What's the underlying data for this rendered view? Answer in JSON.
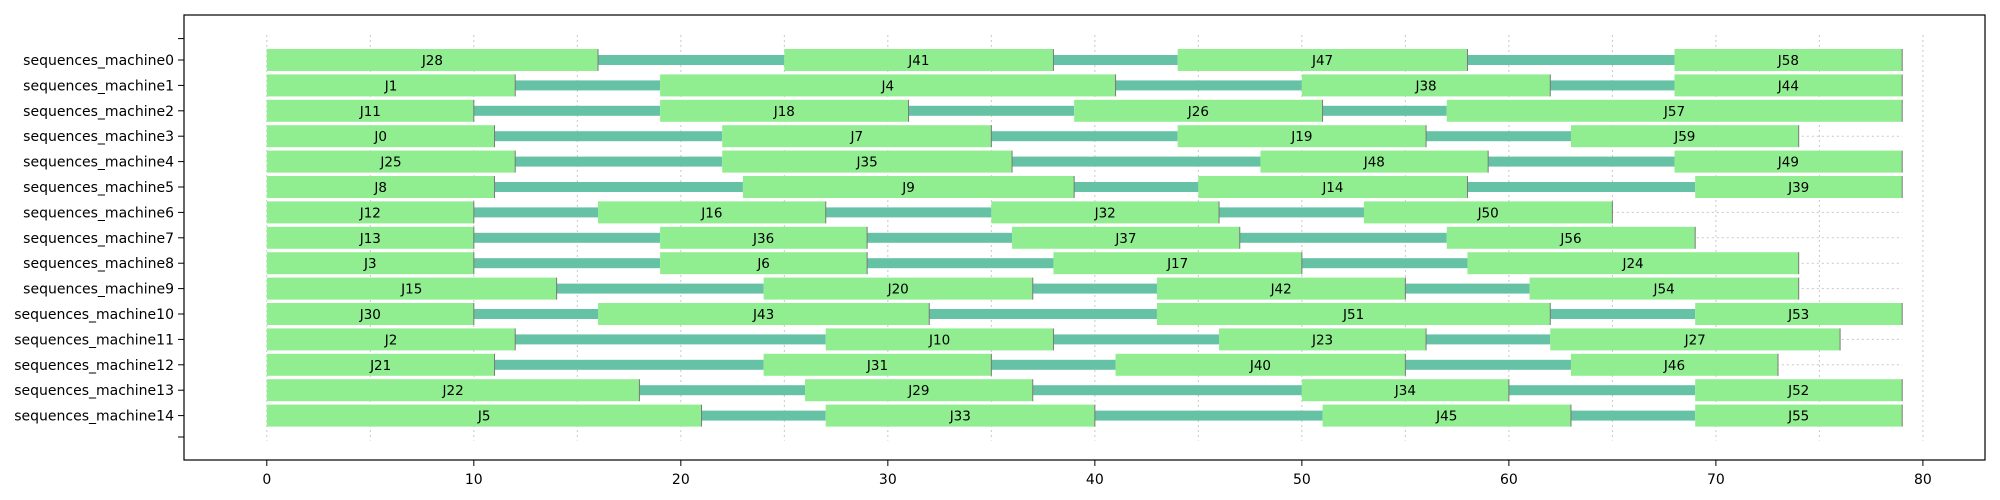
{
  "chart_data": {
    "type": "gantt",
    "title": "",
    "xlabel": "",
    "ylabel": "",
    "xlim": [
      -4,
      83
    ],
    "xticks": [
      0,
      10,
      20,
      30,
      40,
      50,
      60,
      70,
      80
    ],
    "xgrid_step": 5,
    "grid": true,
    "colors": {
      "job": "#90ee90",
      "link": "#66c2a5",
      "grid": "#c8c8c8"
    },
    "machines": [
      {
        "name": "sequences_machine0",
        "jobs": [
          {
            "label": "J28",
            "start": 0,
            "end": 16
          },
          {
            "label": "J41",
            "start": 25,
            "end": 38
          },
          {
            "label": "J47",
            "start": 44,
            "end": 58
          },
          {
            "label": "J58",
            "start": 68,
            "end": 79
          }
        ]
      },
      {
        "name": "sequences_machine1",
        "jobs": [
          {
            "label": "J1",
            "start": 0,
            "end": 12
          },
          {
            "label": "J4",
            "start": 19,
            "end": 41
          },
          {
            "label": "J38",
            "start": 50,
            "end": 62
          },
          {
            "label": "J44",
            "start": 68,
            "end": 79
          }
        ]
      },
      {
        "name": "sequences_machine2",
        "jobs": [
          {
            "label": "J11",
            "start": 0,
            "end": 10
          },
          {
            "label": "J18",
            "start": 19,
            "end": 31
          },
          {
            "label": "J26",
            "start": 39,
            "end": 51
          },
          {
            "label": "J57",
            "start": 57,
            "end": 79
          }
        ]
      },
      {
        "name": "sequences_machine3",
        "jobs": [
          {
            "label": "J0",
            "start": 0,
            "end": 11
          },
          {
            "label": "J7",
            "start": 22,
            "end": 35
          },
          {
            "label": "J19",
            "start": 44,
            "end": 56
          },
          {
            "label": "J59",
            "start": 63,
            "end": 74
          }
        ]
      },
      {
        "name": "sequences_machine4",
        "jobs": [
          {
            "label": "J25",
            "start": 0,
            "end": 12
          },
          {
            "label": "J35",
            "start": 22,
            "end": 36
          },
          {
            "label": "J48",
            "start": 48,
            "end": 59
          },
          {
            "label": "J49",
            "start": 68,
            "end": 79
          }
        ]
      },
      {
        "name": "sequences_machine5",
        "jobs": [
          {
            "label": "J8",
            "start": 0,
            "end": 11
          },
          {
            "label": "J9",
            "start": 23,
            "end": 39
          },
          {
            "label": "J14",
            "start": 45,
            "end": 58
          },
          {
            "label": "J39",
            "start": 69,
            "end": 79
          }
        ]
      },
      {
        "name": "sequences_machine6",
        "jobs": [
          {
            "label": "J12",
            "start": 0,
            "end": 10
          },
          {
            "label": "J16",
            "start": 16,
            "end": 27
          },
          {
            "label": "J32",
            "start": 35,
            "end": 46
          },
          {
            "label": "J50",
            "start": 53,
            "end": 65
          }
        ]
      },
      {
        "name": "sequences_machine7",
        "jobs": [
          {
            "label": "J13",
            "start": 0,
            "end": 10
          },
          {
            "label": "J36",
            "start": 19,
            "end": 29
          },
          {
            "label": "J37",
            "start": 36,
            "end": 47
          },
          {
            "label": "J56",
            "start": 57,
            "end": 69
          }
        ]
      },
      {
        "name": "sequences_machine8",
        "jobs": [
          {
            "label": "J3",
            "start": 0,
            "end": 10
          },
          {
            "label": "J6",
            "start": 19,
            "end": 29
          },
          {
            "label": "J17",
            "start": 38,
            "end": 50
          },
          {
            "label": "J24",
            "start": 58,
            "end": 74
          }
        ]
      },
      {
        "name": "sequences_machine9",
        "jobs": [
          {
            "label": "J15",
            "start": 0,
            "end": 14
          },
          {
            "label": "J20",
            "start": 24,
            "end": 37
          },
          {
            "label": "J42",
            "start": 43,
            "end": 55
          },
          {
            "label": "J54",
            "start": 61,
            "end": 74
          }
        ]
      },
      {
        "name": "sequences_machine10",
        "jobs": [
          {
            "label": "J30",
            "start": 0,
            "end": 10
          },
          {
            "label": "J43",
            "start": 16,
            "end": 32
          },
          {
            "label": "J51",
            "start": 43,
            "end": 62
          },
          {
            "label": "J53",
            "start": 69,
            "end": 79
          }
        ]
      },
      {
        "name": "sequences_machine11",
        "jobs": [
          {
            "label": "J2",
            "start": 0,
            "end": 12
          },
          {
            "label": "J10",
            "start": 27,
            "end": 38
          },
          {
            "label": "J23",
            "start": 46,
            "end": 56
          },
          {
            "label": "J27",
            "start": 62,
            "end": 76
          }
        ]
      },
      {
        "name": "sequences_machine12",
        "jobs": [
          {
            "label": "J21",
            "start": 0,
            "end": 11
          },
          {
            "label": "J31",
            "start": 24,
            "end": 35
          },
          {
            "label": "J40",
            "start": 41,
            "end": 55
          },
          {
            "label": "J46",
            "start": 63,
            "end": 73
          }
        ]
      },
      {
        "name": "sequences_machine13",
        "jobs": [
          {
            "label": "J22",
            "start": 0,
            "end": 18
          },
          {
            "label": "J29",
            "start": 26,
            "end": 37
          },
          {
            "label": "J34",
            "start": 50,
            "end": 60
          },
          {
            "label": "J52",
            "start": 69,
            "end": 79
          }
        ]
      },
      {
        "name": "sequences_machine14",
        "jobs": [
          {
            "label": "J5",
            "start": 0,
            "end": 21
          },
          {
            "label": "J33",
            "start": 27,
            "end": 40
          },
          {
            "label": "J45",
            "start": 51,
            "end": 63
          },
          {
            "label": "J55",
            "start": 69,
            "end": 79
          }
        ]
      }
    ]
  }
}
